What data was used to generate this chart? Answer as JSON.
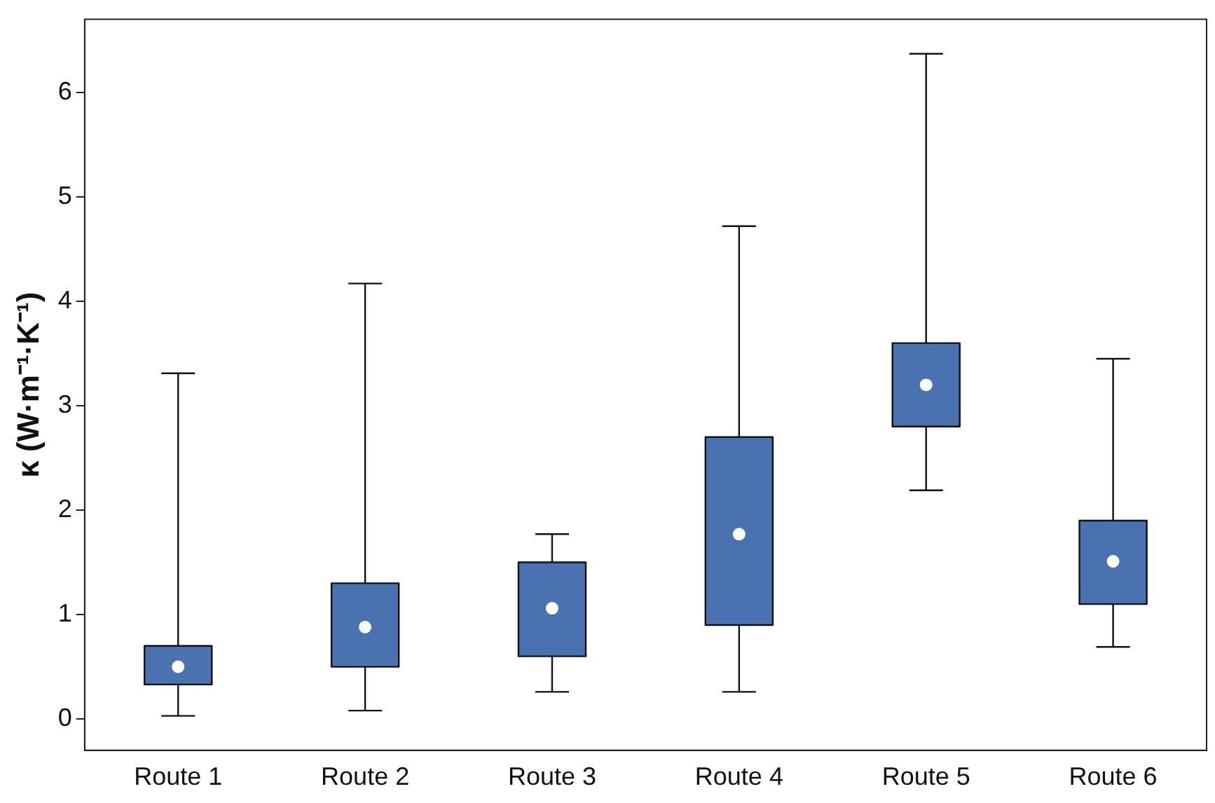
{
  "chart_data": {
    "type": "box",
    "ylabel": "κ (W·m⁻¹·K⁻¹)",
    "categories": [
      "Route 1",
      "Route 2",
      "Route 3",
      "Route 4",
      "Route 5",
      "Route 6"
    ],
    "color": "#4a72b0",
    "boxes": [
      {
        "low": 0.03,
        "q1": 0.33,
        "median": 0.5,
        "q3": 0.7,
        "high": 3.31
      },
      {
        "low": 0.08,
        "q1": 0.5,
        "median": 0.88,
        "q3": 1.3,
        "high": 4.17
      },
      {
        "low": 0.26,
        "q1": 0.6,
        "median": 1.06,
        "q3": 1.5,
        "high": 1.77
      },
      {
        "low": 0.26,
        "q1": 0.9,
        "median": 1.77,
        "q3": 2.7,
        "high": 4.72
      },
      {
        "low": 2.19,
        "q1": 2.8,
        "median": 3.2,
        "q3": 3.6,
        "high": 6.37
      },
      {
        "low": 0.69,
        "q1": 1.1,
        "median": 1.51,
        "q3": 1.9,
        "high": 3.45
      }
    ],
    "ylim": [
      -0.3,
      6.7
    ],
    "yticks": [
      0,
      1,
      2,
      3,
      4,
      5,
      6
    ],
    "grid": false,
    "legend": false
  }
}
